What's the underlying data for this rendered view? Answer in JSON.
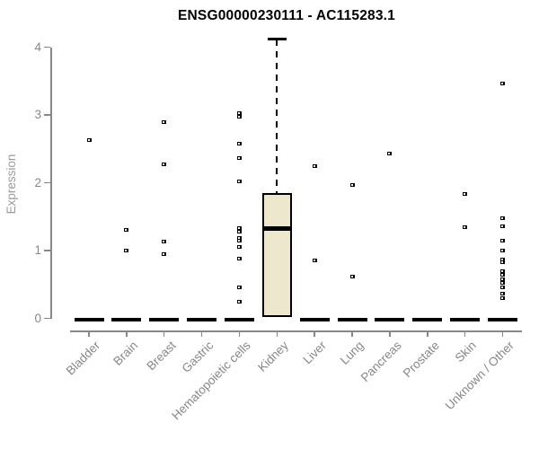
{
  "title": "ENSG00000230111 - AC115283.1",
  "chart_data": {
    "type": "boxplot",
    "title": "ENSG00000230111 - AC115283.1",
    "xlabel": "",
    "ylabel": "Expression",
    "ylim": [
      0,
      4
    ],
    "yticks": [
      0,
      1,
      2,
      3,
      4
    ],
    "grid": false,
    "legend": "none",
    "categories": [
      "Bladder",
      "Brain",
      "Breast",
      "Gastric",
      "Hematopoietic cells",
      "Kidney",
      "Liver",
      "Lung",
      "Pancreas",
      "Prostate",
      "Skin",
      "Unknown / Other"
    ],
    "boxes": [
      {
        "category": "Bladder",
        "q1": 0,
        "median": 0,
        "q3": 0,
        "whisker_low": 0,
        "whisker_high": 0,
        "outliers": [
          2.63
        ]
      },
      {
        "category": "Brain",
        "q1": 0,
        "median": 0,
        "q3": 0,
        "whisker_low": 0,
        "whisker_high": 0,
        "outliers": [
          1.3,
          1.0
        ]
      },
      {
        "category": "Breast",
        "q1": 0,
        "median": 0,
        "q3": 0,
        "whisker_low": 0,
        "whisker_high": 0,
        "outliers": [
          2.89,
          2.27,
          1.13,
          0.95
        ]
      },
      {
        "category": "Gastric",
        "q1": 0,
        "median": 0,
        "q3": 0,
        "whisker_low": 0,
        "whisker_high": 0,
        "outliers": []
      },
      {
        "category": "Hematopoietic cells",
        "q1": 0,
        "median": 0,
        "q3": 0,
        "whisker_low": 0,
        "whisker_high": 0,
        "outliers": [
          3.03,
          2.97,
          2.58,
          2.37,
          2.02,
          1.33,
          1.28,
          1.19,
          1.15,
          1.05,
          0.88,
          0.46,
          0.24
        ]
      },
      {
        "category": "Kidney",
        "q1": 0.03,
        "median": 1.32,
        "q3": 1.84,
        "whisker_low": 0.03,
        "whisker_high": 4.12,
        "outliers": []
      },
      {
        "category": "Liver",
        "q1": 0,
        "median": 0,
        "q3": 0,
        "whisker_low": 0,
        "whisker_high": 0,
        "outliers": [
          2.24,
          0.85
        ]
      },
      {
        "category": "Lung",
        "q1": 0,
        "median": 0,
        "q3": 0,
        "whisker_low": 0,
        "whisker_high": 0,
        "outliers": [
          1.97,
          0.61
        ]
      },
      {
        "category": "Pancreas",
        "q1": 0,
        "median": 0,
        "q3": 0,
        "whisker_low": 0,
        "whisker_high": 0,
        "outliers": [
          2.43
        ]
      },
      {
        "category": "Prostate",
        "q1": 0,
        "median": 0,
        "q3": 0,
        "whisker_low": 0,
        "whisker_high": 0,
        "outliers": []
      },
      {
        "category": "Skin",
        "q1": 0,
        "median": 0,
        "q3": 0,
        "whisker_low": 0,
        "whisker_high": 0,
        "outliers": [
          1.83,
          1.34
        ]
      },
      {
        "category": "Unknown / Other",
        "q1": 0,
        "median": 0,
        "q3": 0,
        "whisker_low": 0,
        "whisker_high": 0,
        "outliers": [
          3.47,
          1.48,
          1.36,
          1.14,
          1.0,
          0.87,
          0.83,
          0.7,
          0.64,
          0.58,
          0.52,
          0.46,
          0.37,
          0.3
        ]
      }
    ],
    "colors": {
      "box_fill": "#EDE7CE",
      "box_border": "#000000",
      "median": "#000000",
      "axis": "#888888",
      "tick_labels": "#878787",
      "title": "#000000"
    }
  }
}
